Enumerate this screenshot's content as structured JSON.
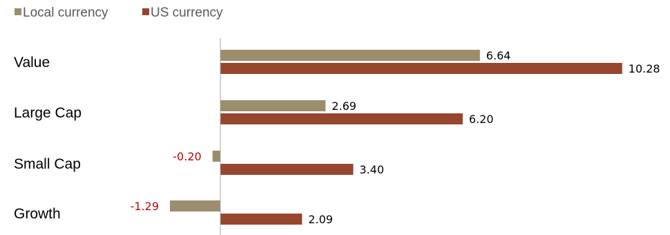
{
  "colors": {
    "local": "#9C8D6E",
    "us": "#96472D",
    "axis": "#a6a6a6",
    "negative_label": "#c00000",
    "positive_label": "#000000"
  },
  "chart_data": {
    "type": "bar",
    "orientation": "horizontal",
    "title": "",
    "xlabel": "",
    "ylabel": "",
    "legend_position": "top-left",
    "categories": [
      "Value",
      "Large Cap",
      "Small Cap",
      "Growth"
    ],
    "series": [
      {
        "name": "Local currency",
        "values": [
          6.64,
          2.69,
          -0.2,
          -1.29
        ],
        "labels": [
          "6.64",
          "2.69",
          "-0.20",
          "-1.29"
        ]
      },
      {
        "name": "US currency",
        "values": [
          10.28,
          6.2,
          3.4,
          2.09
        ],
        "labels": [
          "10.28",
          "6.20",
          "3.40",
          "2.09"
        ]
      }
    ],
    "xlim": [
      -2.3,
      10.3
    ],
    "grid": false
  }
}
